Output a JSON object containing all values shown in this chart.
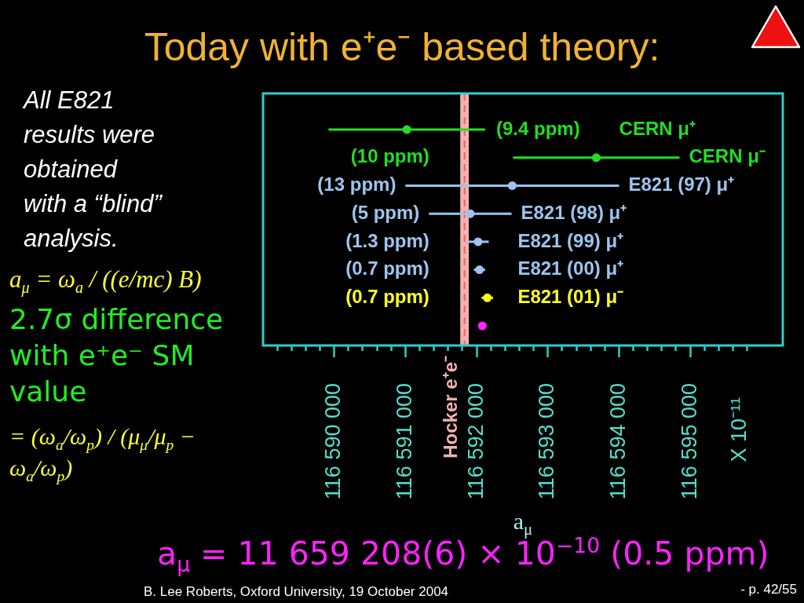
{
  "chart_data": {
    "type": "scatter",
    "orientation": "horizontal",
    "marker": "circle",
    "tick_labels": "x",
    "title": "Today with e⁺e⁻ based theory:",
    "xlabel": "a$_{μ}$",
    "categories": [
      "CERN μ⁺",
      "CERN μ⁻",
      "E821 (97) μ⁺",
      "E821 (98) μ⁺",
      "E821 (99) μ⁺",
      "E821 (00) μ⁺",
      "E821 (01) μ⁻",
      null
    ],
    "values": [
      116591020,
      116593680,
      116592500,
      116591910,
      116592020,
      116592040,
      116592150,
      116592080
    ],
    "errors": [
      1100,
      1170,
      1500,
      580,
      150,
      80,
      80,
      null
    ],
    "colors": [
      "#22dd22",
      "#22dd22",
      "#9cc4ee",
      "#9cc4ee",
      "#9cc4ee",
      "#9cc4ee",
      "#ffff22",
      "#ff22ff"
    ],
    "xlim": [
      116589000,
      116596300
    ],
    "xticks": [
      {
        "value": 116589200,
        "label": null
      },
      {
        "value": 116589400,
        "label": null
      },
      {
        "value": 116589600,
        "label": null
      },
      {
        "value": 116589800,
        "label": null
      },
      {
        "value": 116590000,
        "label": "116 590 000"
      },
      {
        "value": 116590200,
        "label": null
      },
      {
        "value": 116590400,
        "label": null
      },
      {
        "value": 116590600,
        "label": null
      },
      {
        "value": 116590800,
        "label": null
      },
      {
        "value": 116591000,
        "label": "116 591 000"
      },
      {
        "value": 116591200,
        "label": null
      },
      {
        "value": 116591400,
        "label": null
      },
      {
        "value": 116591600,
        "label": null
      },
      {
        "value": 116591800,
        "label": null
      },
      {
        "value": 116592000,
        "label": "116 592 000"
      },
      {
        "value": 116592200,
        "label": null
      },
      {
        "value": 116592400,
        "label": null
      },
      {
        "value": 116592600,
        "label": null
      },
      {
        "value": 116592800,
        "label": null
      },
      {
        "value": 116593000,
        "label": "116 593 000"
      },
      {
        "value": 116593200,
        "label": null
      },
      {
        "value": 116593400,
        "label": null
      },
      {
        "value": 116593600,
        "label": null
      },
      {
        "value": 116593800,
        "label": null
      },
      {
        "value": 116594000,
        "label": "116 594 000"
      },
      {
        "value": 116594200,
        "label": null
      },
      {
        "value": 116594400,
        "label": null
      },
      {
        "value": 116594600,
        "label": null
      },
      {
        "value": 116594800,
        "label": null
      },
      {
        "value": 116595000,
        "label": "116 595 000"
      },
      {
        "value": 116595200,
        "label": null
      },
      {
        "value": 116595400,
        "label": null
      },
      {
        "value": 116595600,
        "label": null
      },
      {
        "value": 116595800,
        "label": null
      }
    ],
    "bands": [
      {
        "axis": "x",
        "from": 116591770,
        "to": 116591890,
        "label": "Hocker e⁺e⁻",
        "color": "#f4b0b0"
      }
    ],
    "ref_lines": [
      {
        "axis": "x",
        "value": 116591830,
        "color": "#e06868",
        "line_style": "dashed"
      }
    ],
    "annotations": [
      "X 10⁻¹¹",
      "All E821 results were obtained with a “blind” analysis.",
      "a$_{μ}$ = ω$_{a}$ / ((e/mc) B)",
      "2.7σ difference with e⁺e⁻ SM value",
      "= (ω$_{a}$/ω$_{p}$) / (μ$_{μ}$/μ$_{p}$ − ω$_{a}$/ω$_{p}$)",
      "a$_{μ}$ = 11 659 208(6) × 10$^{−10}$ (0.5 ppm)",
      "B. Lee Roberts, Oxford University, 19 October 2004",
      "- p. 42/55",
      "(9.4 ppm)",
      "(10 ppm)",
      "(13 ppm)",
      "(5 ppm)",
      "(1.3 ppm)",
      "(0.7 ppm)",
      "(0.7 ppm)"
    ]
  }
}
